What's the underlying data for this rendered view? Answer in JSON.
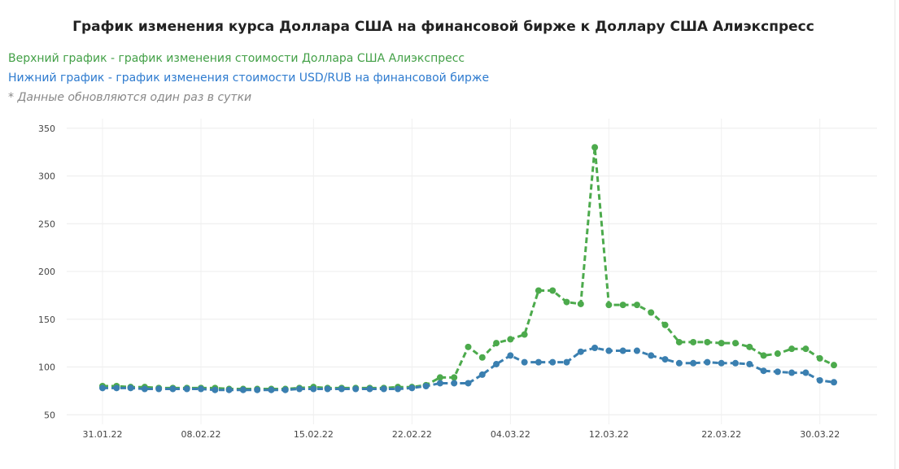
{
  "chart_data": {
    "type": "line",
    "title": "График изменения курса Доллара США на финансовой бирже к Доллару США Алиэкспресс",
    "legend_lines": [
      "Верхний график - график изменения стоимости Доллара США Алиэкспресс",
      "Нижний график - график изменения стоимости USD/RUB на финансовой бирже"
    ],
    "note": "* Данные обновляются один раз в сутки",
    "categories": [
      "31.01.22",
      null,
      null,
      null,
      null,
      null,
      null,
      "08.02.22",
      null,
      null,
      null,
      null,
      null,
      null,
      null,
      "15.02.22",
      null,
      null,
      null,
      null,
      null,
      null,
      "22.02.22",
      null,
      null,
      null,
      null,
      null,
      null,
      "04.03.22",
      null,
      null,
      null,
      null,
      null,
      null,
      "12.03.22",
      null,
      null,
      null,
      null,
      null,
      null,
      null,
      "22.03.22",
      null,
      null,
      null,
      null,
      null,
      null,
      "30.03.22",
      null
    ],
    "series": [
      {
        "color": "#4caa4c",
        "values": [
          80,
          80,
          79,
          79,
          78,
          78,
          78,
          78,
          78,
          77,
          77,
          77,
          77,
          77,
          78,
          79,
          78,
          78,
          78,
          78,
          78,
          79,
          79,
          81,
          89,
          89,
          121,
          110,
          125,
          129,
          134,
          180,
          180,
          168,
          166,
          330,
          165,
          165,
          165,
          157,
          144,
          126,
          126,
          126,
          125,
          125,
          121,
          112,
          114,
          119,
          119,
          109,
          102
        ]
      },
      {
        "color": "#3a7fb0",
        "values": [
          78,
          78,
          78,
          77,
          77,
          77,
          77,
          77,
          76,
          76,
          76,
          76,
          76,
          76,
          77,
          77,
          77,
          77,
          77,
          77,
          77,
          77,
          78,
          80,
          83,
          83,
          83,
          92,
          103,
          112,
          105,
          105,
          105,
          105,
          116,
          120,
          117,
          117,
          117,
          112,
          108,
          104,
          104,
          105,
          104,
          104,
          103,
          96,
          95,
          94,
          94,
          86,
          84
        ]
      }
    ],
    "ylim": [
      40,
      360
    ],
    "yticks": [
      50,
      100,
      150,
      200,
      250,
      300,
      350
    ],
    "grid": true
  }
}
